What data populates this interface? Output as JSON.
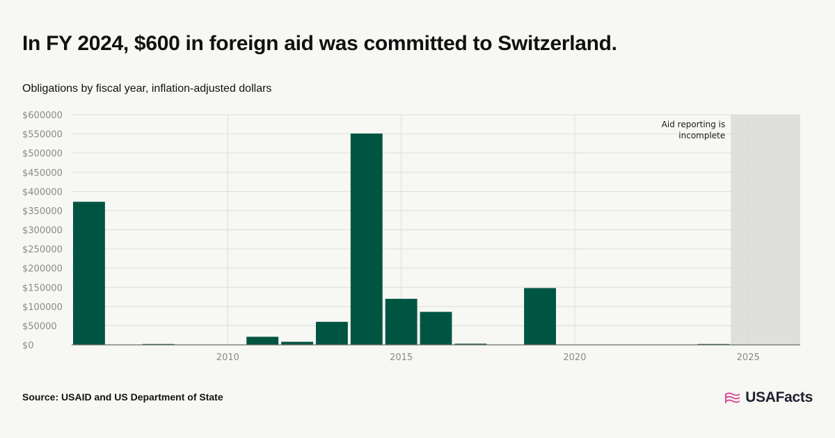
{
  "header": {
    "title": "In FY 2024, $600 in foreign aid was committed to Switzerland.",
    "subtitle": "Obligations by fiscal year, inflation-adjusted dollars"
  },
  "footer": {
    "source": "Source: USAID and US Department of State",
    "logo_text": "USAFacts"
  },
  "colors": {
    "bar": "#005542",
    "shade": "#dfdfdb",
    "grid": "#dcdcd8",
    "axis": "#6b6b66",
    "logo_flag": "#d63c8f"
  },
  "chart_data": {
    "type": "bar",
    "x": [
      2006,
      2007,
      2008,
      2009,
      2010,
      2011,
      2012,
      2013,
      2014,
      2015,
      2016,
      2017,
      2018,
      2019,
      2020,
      2021,
      2022,
      2023,
      2024,
      2025,
      2026
    ],
    "values": [
      373000,
      0,
      1500,
      0,
      0,
      21000,
      8000,
      60000,
      551000,
      120000,
      86000,
      3000,
      0,
      148000,
      0,
      0,
      0,
      0,
      600,
      0,
      0
    ],
    "xlim": [
      2005.5,
      2026.5
    ],
    "ylim": [
      0,
      600000
    ],
    "x_ticks": [
      2010,
      2015,
      2020,
      2025
    ],
    "y_ticks": [
      0,
      50000,
      100000,
      150000,
      200000,
      250000,
      300000,
      350000,
      400000,
      450000,
      500000,
      550000,
      600000
    ],
    "y_tick_labels": [
      "$0",
      "$50000",
      "$100000",
      "$150000",
      "$200000",
      "$250000",
      "$300000",
      "$350000",
      "$400000",
      "$450000",
      "$500000",
      "$550000",
      "$600000"
    ],
    "shaded_region": [
      2024.5,
      2026.5
    ],
    "annotation": [
      "Aid reporting is",
      "incomplete"
    ],
    "grid": true
  }
}
